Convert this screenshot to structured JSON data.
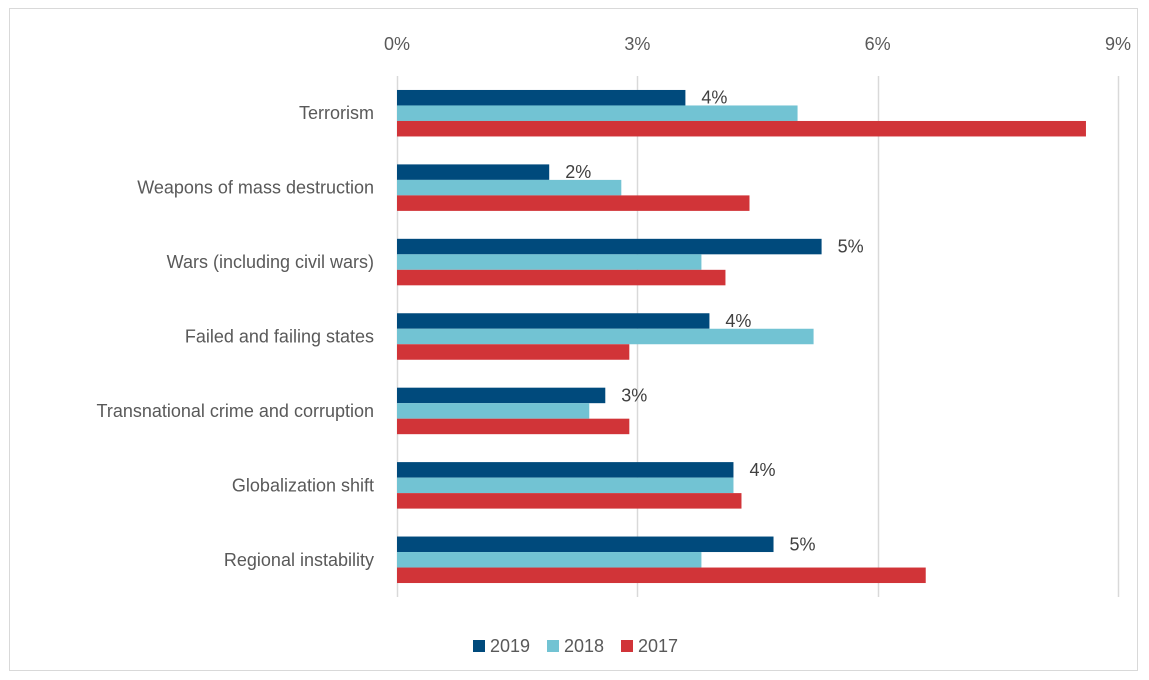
{
  "chart_data": {
    "type": "bar",
    "orientation": "horizontal",
    "title": "",
    "xlabel": "",
    "ylabel": "",
    "xlim": [
      0,
      9
    ],
    "x_ticks": [
      0,
      3,
      6,
      9
    ],
    "x_tick_labels": [
      "0%",
      "3%",
      "6%",
      "9%"
    ],
    "grid": true,
    "legend_position": "bottom",
    "categories": [
      "Terrorism",
      "Weapons of mass destruction",
      "Wars (including civil wars)",
      "Failed and failing states",
      "Transnational crime and corruption",
      "Globalization shift",
      "Regional instability"
    ],
    "series": [
      {
        "name": "2019",
        "color": "#004a7c",
        "values": [
          3.6,
          1.9,
          5.3,
          3.9,
          2.6,
          4.2,
          4.7
        ]
      },
      {
        "name": "2018",
        "color": "#72c3d3",
        "values": [
          5.0,
          2.8,
          3.8,
          5.2,
          2.4,
          4.2,
          3.8
        ]
      },
      {
        "name": "2017",
        "color": "#d13438",
        "values": [
          8.6,
          4.4,
          4.1,
          2.9,
          2.9,
          4.3,
          6.6
        ]
      }
    ],
    "data_labels": {
      "series": "2019",
      "labels": [
        "4%",
        "2%",
        "5%",
        "4%",
        "3%",
        "4%",
        "5%"
      ]
    },
    "colors": {
      "grid": "#d9d9d9",
      "text": "#595959",
      "border": "#d9d9d9"
    }
  }
}
